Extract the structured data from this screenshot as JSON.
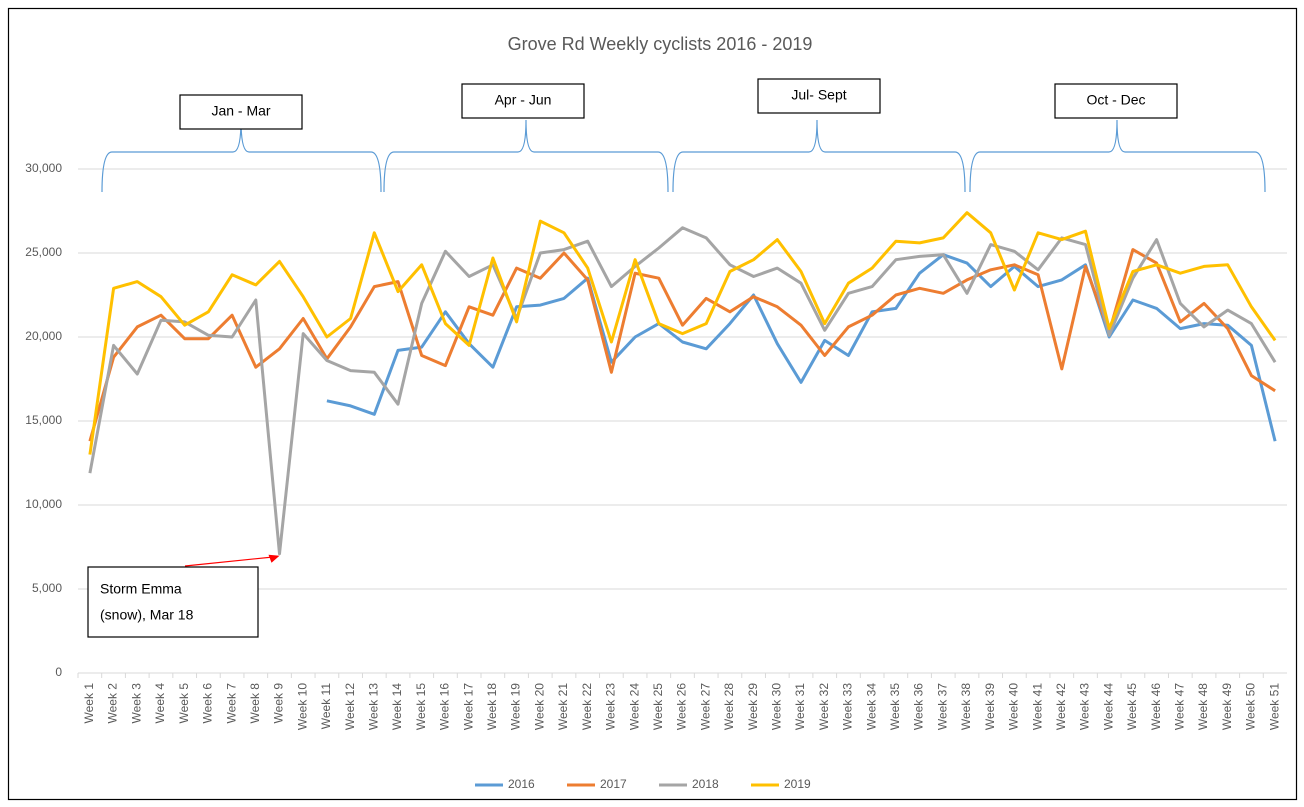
{
  "chart_data": {
    "type": "line",
    "title": "Grove Rd Weekly cyclists 2016 - 2019",
    "annotations": [
      "Jan - Mar",
      "Apr - Jun",
      "Jul- Sept",
      "Oct - Dec"
    ],
    "storm_note": [
      "Storm Emma",
      "(snow), Mar 18"
    ],
    "categories": [
      "Week 1",
      "Week 2",
      "Week 3",
      "Week 4",
      "Week 5",
      "Week 6",
      "Week 7",
      "Week 8",
      "Week 9",
      "Week 10",
      "Week 11",
      "Week 12",
      "Week 13",
      "Week 14",
      "Week 15",
      "Week 16",
      "Week 17",
      "Week 18",
      "Week 19",
      "Week 20",
      "Week 21",
      "Week 22",
      "Week 23",
      "Week 24",
      "Week 25",
      "Week 26",
      "Week 27",
      "Week 28",
      "Week 29",
      "Week 30",
      "Week 31",
      "Week 32",
      "Week 33",
      "Week 34",
      "Week 35",
      "Week 36",
      "Week 37",
      "Week 38",
      "Week 39",
      "Week 40",
      "Week 41",
      "Week 42",
      "Week 43",
      "Week 44",
      "Week 45",
      "Week 46",
      "Week 47",
      "Week 48",
      "Week 49",
      "Week 50",
      "Week 51"
    ],
    "series": [
      {
        "name": "2016",
        "color": "#5b9bd5",
        "values": [
          null,
          null,
          null,
          null,
          null,
          null,
          null,
          null,
          null,
          null,
          16200,
          15900,
          15400,
          19200,
          19400,
          21500,
          19600,
          18200,
          21800,
          21900,
          22300,
          23500,
          18500,
          20000,
          20800,
          19700,
          19300,
          20800,
          22500,
          19600,
          17300,
          19800,
          18900,
          21500,
          21700,
          23800,
          24900,
          24400,
          23000,
          24200,
          23000,
          23400,
          24300,
          20000,
          22200,
          21700,
          20500,
          20800,
          20700,
          19500,
          13800
        ]
      },
      {
        "name": "2017",
        "color": "#ed7d31",
        "values": [
          13800,
          18800,
          20600,
          21300,
          19900,
          19900,
          21300,
          18200,
          19300,
          21100,
          18700,
          20600,
          23000,
          23300,
          18900,
          18300,
          21800,
          21300,
          24100,
          23500,
          25000,
          23400,
          17900,
          23800,
          23500,
          20700,
          22300,
          21500,
          22400,
          21800,
          20700,
          18900,
          20600,
          21300,
          22500,
          22900,
          22600,
          23400,
          24000,
          24300,
          23700,
          18100,
          24200,
          20300,
          25200,
          24400,
          20900,
          22000,
          20500,
          17700,
          16800
        ]
      },
      {
        "name": "2018",
        "color": "#a5a5a5",
        "values": [
          11900,
          19500,
          17800,
          21000,
          20900,
          20100,
          20000,
          22200,
          7100,
          20200,
          18600,
          18000,
          17900,
          16000,
          22000,
          25100,
          23600,
          24300,
          21100,
          25000,
          25200,
          25700,
          23000,
          24200,
          25300,
          26500,
          25900,
          24300,
          23600,
          24100,
          23200,
          20400,
          22600,
          23000,
          24600,
          24800,
          24900,
          22600,
          25500,
          25100,
          24000,
          25900,
          25500,
          20100,
          23500,
          25800,
          22000,
          20600,
          21600,
          20800,
          18500
        ]
      },
      {
        "name": "2019",
        "color": "#ffc000",
        "values": [
          13000,
          22900,
          23300,
          22400,
          20700,
          21500,
          23700,
          23100,
          24500,
          22400,
          20000,
          21100,
          26200,
          22700,
          24300,
          20800,
          19500,
          24700,
          20900,
          26900,
          26200,
          24100,
          19700,
          24600,
          20800,
          20200,
          20800,
          23900,
          24600,
          25800,
          23900,
          20800,
          23200,
          24100,
          25700,
          25600,
          25900,
          27400,
          26200,
          22800,
          26200,
          25800,
          26300,
          20500,
          23900,
          24300,
          23800,
          24200,
          24300,
          21800,
          19800
        ]
      }
    ],
    "ylim": [
      0,
      30000
    ],
    "yticks": [
      0,
      {
        "value": 5000,
        "label": "5,000"
      },
      {
        "value": 10000,
        "label": "10,000"
      },
      {
        "value": 15000,
        "label": "15,000"
      },
      {
        "value": 20000,
        "label": "20,000"
      },
      {
        "value": 25000,
        "label": "25,000"
      },
      {
        "value": 30000,
        "label": "30,000"
      }
    ],
    "grid": true,
    "legend": "bottom"
  }
}
